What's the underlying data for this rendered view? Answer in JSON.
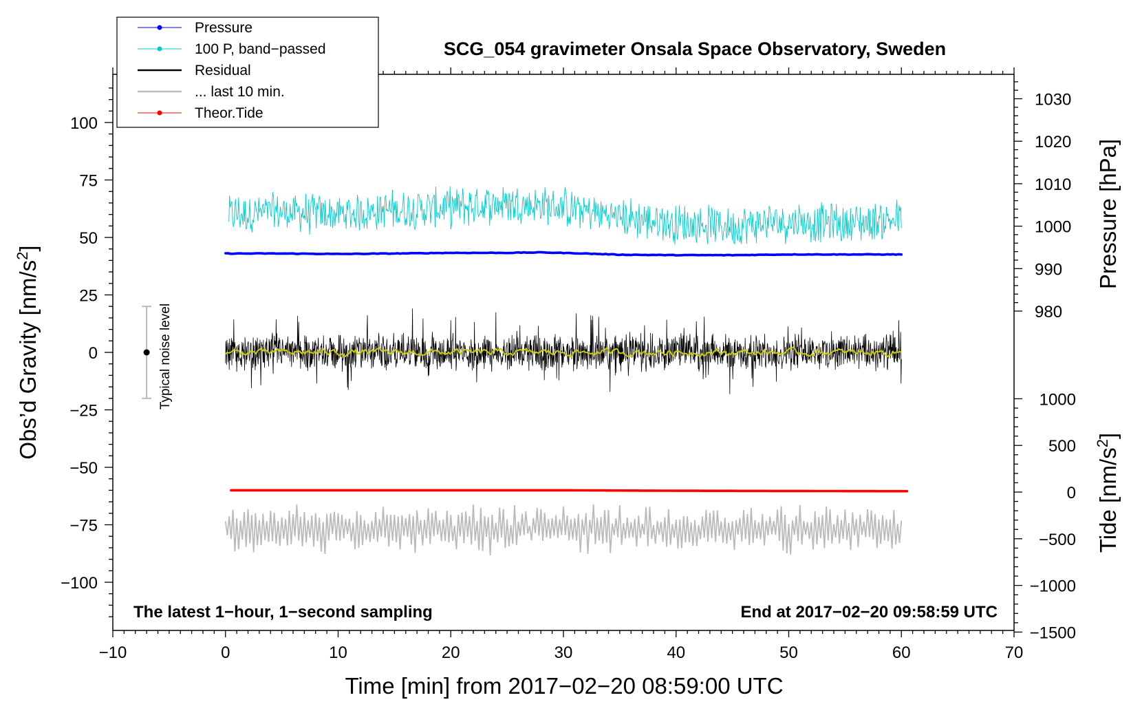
{
  "chart_data": {
    "type": "line",
    "title": "SCG_054 gravimeter Onsala Space Observatory, Sweden",
    "xlabel": "Time [min] from 2017−02−20 08:59:00 UTC",
    "ylabel_left_pre": "Obs’d Gravity [nm/s",
    "ylabel_left_sup": "2",
    "ylabel_left_post": "]",
    "ylabel_right_pressure": "Pressure [hPa]",
    "ylabel_right_tide_pre": "Tide [nm/s",
    "ylabel_right_tide_sup": "2",
    "ylabel_right_tide_post": "]",
    "xlim": [
      -10,
      70
    ],
    "ylim_left": [
      -120,
      120
    ],
    "x_ticks": [
      "−10",
      "0",
      "10",
      "20",
      "30",
      "40",
      "50",
      "60",
      "70"
    ],
    "x_tick_values": [
      -10,
      0,
      10,
      20,
      30,
      40,
      50,
      60,
      70
    ],
    "y_left_ticks": [
      "−100",
      "−75",
      "−50",
      "−25",
      "0",
      "25",
      "50",
      "75",
      "100"
    ],
    "y_left_tick_values": [
      -100,
      -75,
      -50,
      -25,
      0,
      25,
      50,
      75,
      100
    ],
    "pressure_ticks": [
      "980",
      "990",
      "1000",
      "1010",
      "1020",
      "1030"
    ],
    "pressure_tick_values": [
      980,
      990,
      1000,
      1010,
      1020,
      1030
    ],
    "tide_ticks": [
      "−1500",
      "−1000",
      "−500",
      "0",
      "500",
      "1000"
    ],
    "tide_tick_values": [
      -1500,
      -1000,
      -500,
      0,
      500,
      1000
    ],
    "annotation_left": "The latest 1−hour, 1−second sampling",
    "annotation_right": "End at 2017−02−20 09:58:59 UTC",
    "noise_label": "Typical noise level",
    "noise_bar": {
      "x": -7,
      "center": 0,
      "half_range": 20
    },
    "legend": [
      {
        "label": "Pressure",
        "color": "#0000ff",
        "marker": true
      },
      {
        "label": "100 P, band−passed",
        "color": "#00cccc",
        "marker": true
      },
      {
        "label": "Residual",
        "color": "#000000",
        "marker": false
      },
      {
        "label": "... last 10 min.",
        "color": "#bbbbbb",
        "marker": false
      },
      {
        "label": "Theor.Tide",
        "color": "#ff0000",
        "marker": true
      }
    ],
    "series": [
      {
        "name": "Pressure",
        "color": "#0000ff",
        "axis": "gravity_equiv",
        "x": [
          0,
          5,
          10,
          15,
          20,
          25,
          28,
          32,
          35,
          40,
          45,
          50,
          55,
          60
        ],
        "values": [
          43,
          43,
          42.8,
          43,
          43.3,
          43.3,
          43.5,
          43,
          42.5,
          42.3,
          42.3,
          42.6,
          42.6,
          42.6
        ]
      },
      {
        "name": "100 P, band−passed",
        "color": "#00cccc",
        "axis": "gravity_equiv",
        "x": [
          0,
          5,
          10,
          15,
          20,
          25,
          30,
          35,
          40,
          45,
          50,
          55,
          60
        ],
        "values": [
          60,
          61,
          60,
          62,
          63,
          65,
          63,
          59,
          56,
          55,
          57,
          56,
          58
        ]
      },
      {
        "name": "Residual",
        "color": "#000000",
        "axis": "gravity",
        "x_range": [
          0,
          60
        ],
        "mean": 0,
        "amplitude": 12
      },
      {
        "name": "Residual smoothed",
        "color": "#cccc00",
        "axis": "gravity",
        "x_range": [
          0,
          60
        ],
        "mean": 0,
        "amplitude": 1.5
      },
      {
        "name": "... last 10 min.",
        "color": "#bbbbbb",
        "axis": "gravity",
        "x_range": [
          0,
          60
        ],
        "mean": -77,
        "amplitude": 11
      },
      {
        "name": "Theor.Tide",
        "color": "#ff0000",
        "axis": "gravity_equiv",
        "x": [
          0,
          10,
          20,
          30,
          40,
          50,
          60.5
        ],
        "values": [
          -60,
          -60,
          -60,
          -60,
          -60.2,
          -60.3,
          -60.4
        ]
      }
    ]
  }
}
